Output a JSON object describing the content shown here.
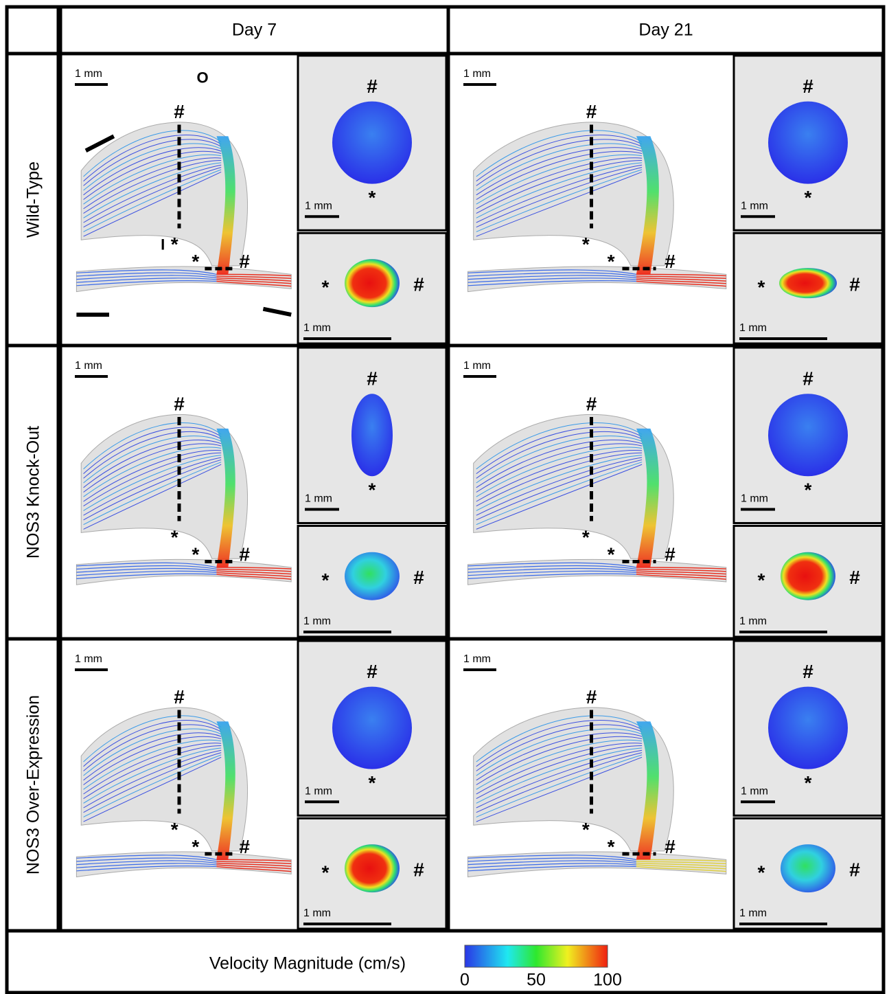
{
  "columns": [
    "Day 7",
    "Day 21"
  ],
  "rows": [
    "Wild-Type",
    "NOS3 Knock-Out",
    "NOS3 Over-Expression"
  ],
  "scale_label": "1 mm",
  "markers": {
    "hash": "#",
    "star": "*",
    "inlet": "I",
    "outlet": "O"
  },
  "colorbar": {
    "label": "Velocity Magnitude (cm/s)",
    "ticks": [
      0,
      50,
      100
    ]
  }
}
